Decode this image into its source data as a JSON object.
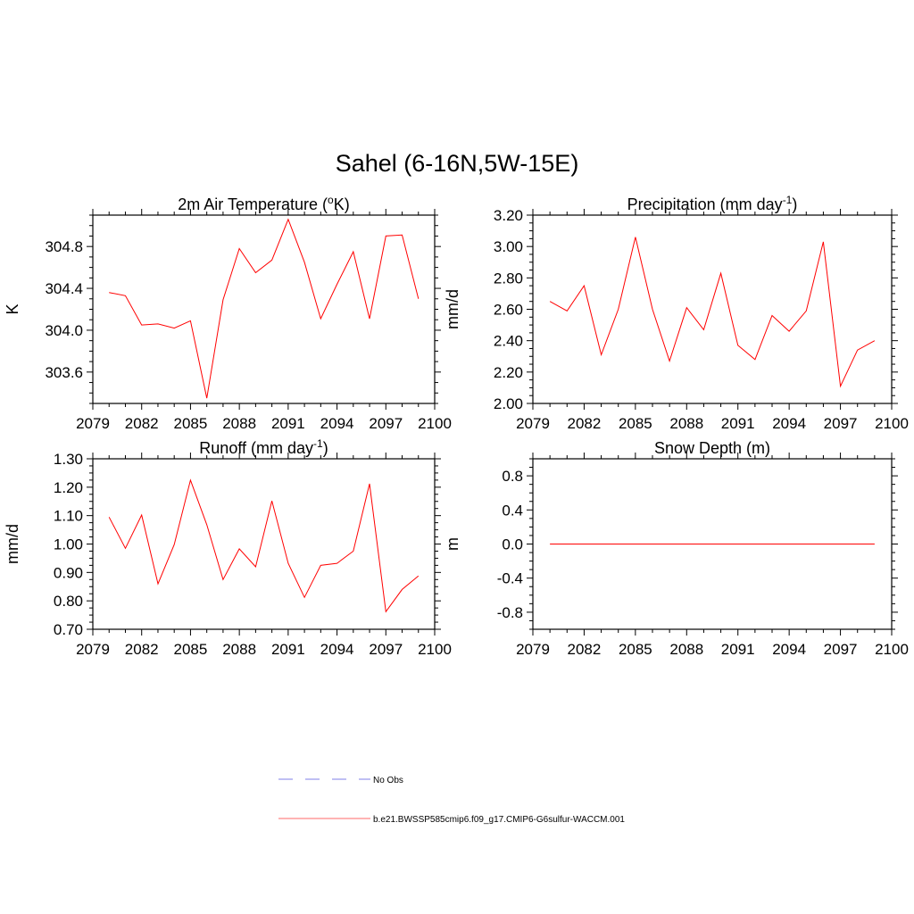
{
  "title": "Sahel (6-16N,5W-15E)",
  "legend": {
    "entries": [
      {
        "label": "No Obs",
        "color": "#9999ee",
        "style": "dashed"
      },
      {
        "label": "b.e21.BWSSP585cmip6.f09_g17.CMIP6-G6sulfur-WACCM.001",
        "color": "#ff8888",
        "style": "solid"
      }
    ]
  },
  "chart_data": [
    {
      "type": "line",
      "title": "2m Air Temperature (",
      "title_sup": "o",
      "title_after": "K)",
      "title_sup_position": "superscript",
      "ylabel": "K",
      "xlim": [
        2079,
        2100
      ],
      "ylim": [
        303.3,
        305.1
      ],
      "xticks": [
        2079,
        2082,
        2085,
        2088,
        2091,
        2094,
        2097,
        2100
      ],
      "xtick_labels": [
        "2079",
        "2082",
        "2085",
        "2088",
        "2091",
        "2094",
        "2097",
        "2100"
      ],
      "yticks": [
        303.6,
        304.0,
        304.4,
        304.8
      ],
      "ytick_labels": [
        "303.6",
        "304.0",
        "304.4",
        "304.8"
      ],
      "color": "#ff0000",
      "x": [
        2080,
        2081,
        2082,
        2083,
        2084,
        2085,
        2086,
        2087,
        2088,
        2089,
        2090,
        2091,
        2092,
        2093,
        2094,
        2095,
        2096,
        2097,
        2098,
        2099
      ],
      "y": [
        304.36,
        304.33,
        304.05,
        304.06,
        304.02,
        304.09,
        303.35,
        304.29,
        304.78,
        304.55,
        304.67,
        305.06,
        304.65,
        304.11,
        304.44,
        304.75,
        304.11,
        304.9,
        304.91,
        304.3
      ]
    },
    {
      "type": "line",
      "title": "Precipitation (mm day",
      "title_sup": "-1",
      "title_after": ")",
      "ylabel": "mm/d",
      "xlim": [
        2079,
        2100
      ],
      "ylim": [
        2.0,
        3.2
      ],
      "xticks": [
        2079,
        2082,
        2085,
        2088,
        2091,
        2094,
        2097,
        2100
      ],
      "xtick_labels": [
        "2079",
        "2082",
        "2085",
        "2088",
        "2091",
        "2094",
        "2097",
        "2100"
      ],
      "yticks": [
        2.0,
        2.2,
        2.4,
        2.6,
        2.8,
        3.0,
        3.2
      ],
      "ytick_labels": [
        "2.00",
        "2.20",
        "2.40",
        "2.60",
        "2.80",
        "3.00",
        "3.20"
      ],
      "color": "#ff0000",
      "x": [
        2080,
        2081,
        2082,
        2083,
        2084,
        2085,
        2086,
        2087,
        2088,
        2089,
        2090,
        2091,
        2092,
        2093,
        2094,
        2095,
        2096,
        2097,
        2098,
        2099
      ],
      "y": [
        2.65,
        2.59,
        2.75,
        2.31,
        2.6,
        3.06,
        2.6,
        2.27,
        2.61,
        2.47,
        2.83,
        2.37,
        2.28,
        2.56,
        2.46,
        2.59,
        3.03,
        2.11,
        2.34,
        2.4
      ]
    },
    {
      "type": "line",
      "title": "Runoff (mm day",
      "title_sup": "-1",
      "title_after": ")",
      "ylabel": "mm/d",
      "xlim": [
        2079,
        2100
      ],
      "ylim": [
        0.7,
        1.3
      ],
      "xticks": [
        2079,
        2082,
        2085,
        2088,
        2091,
        2094,
        2097,
        2100
      ],
      "xtick_labels": [
        "2079",
        "2082",
        "2085",
        "2088",
        "2091",
        "2094",
        "2097",
        "2100"
      ],
      "yticks": [
        0.7,
        0.8,
        0.9,
        1.0,
        1.1,
        1.2,
        1.3
      ],
      "ytick_labels": [
        "0.70",
        "0.80",
        "0.90",
        "1.00",
        "1.10",
        "1.20",
        "1.30"
      ],
      "color": "#ff0000",
      "x": [
        2080,
        2081,
        2082,
        2083,
        2084,
        2085,
        2086,
        2087,
        2088,
        2089,
        2090,
        2091,
        2092,
        2093,
        2094,
        2095,
        2096,
        2097,
        2098,
        2099
      ],
      "y": [
        1.095,
        0.985,
        1.102,
        0.86,
        0.998,
        1.225,
        1.068,
        0.875,
        0.983,
        0.92,
        1.152,
        0.932,
        0.812,
        0.925,
        0.932,
        0.975,
        1.212,
        0.762,
        0.84,
        0.888
      ]
    },
    {
      "type": "line",
      "title": "Snow Depth (m)",
      "title_sup": "",
      "title_after": "",
      "ylabel": "m",
      "xlim": [
        2079,
        2100
      ],
      "ylim": [
        -1.0,
        1.0
      ],
      "xticks": [
        2079,
        2082,
        2085,
        2088,
        2091,
        2094,
        2097,
        2100
      ],
      "xtick_labels": [
        "2079",
        "2082",
        "2085",
        "2088",
        "2091",
        "2094",
        "2097",
        "2100"
      ],
      "yticks": [
        -0.8,
        -0.4,
        0.0,
        0.4,
        0.8
      ],
      "ytick_labels": [
        "-0.8",
        "-0.4",
        "0.0",
        "0.4",
        "0.8"
      ],
      "color": "#ff0000",
      "x": [
        2080,
        2081,
        2082,
        2083,
        2084,
        2085,
        2086,
        2087,
        2088,
        2089,
        2090,
        2091,
        2092,
        2093,
        2094,
        2095,
        2096,
        2097,
        2098,
        2099
      ],
      "y": [
        0,
        0,
        0,
        0,
        0,
        0,
        0,
        0,
        0,
        0,
        0,
        0,
        0,
        0,
        0,
        0,
        0,
        0,
        0,
        0
      ]
    }
  ]
}
